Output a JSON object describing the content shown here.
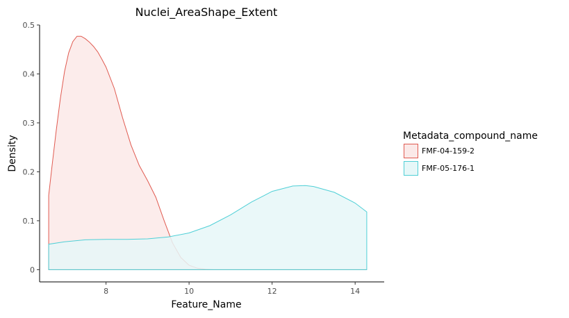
{
  "chart_data": {
    "type": "area",
    "title": "Nuclei_AreaShape_Extent",
    "xlabel": "Feature_Name",
    "ylabel": "Density",
    "xlim": [
      6.4,
      14.7
    ],
    "ylim": [
      -0.025,
      0.5
    ],
    "xticks": [
      8,
      10,
      12,
      14
    ],
    "yticks": [
      0,
      0.1,
      0.2,
      0.3,
      0.4,
      0.5
    ],
    "xtick_labels": [
      "8",
      "10",
      "12",
      "14"
    ],
    "ytick_labels": [
      "0",
      "0.1",
      "0.2",
      "0.3",
      "0.4",
      "0.5"
    ],
    "grid": false,
    "legend_placement": "right",
    "legend_title": "Metadata_compound_name",
    "series": [
      {
        "name": "FMF-04-159-2",
        "color": "#e05a50",
        "fill": "#fbe9e8",
        "x": [
          6.62,
          6.7,
          6.8,
          6.9,
          7.0,
          7.1,
          7.2,
          7.3,
          7.4,
          7.5,
          7.6,
          7.7,
          7.8,
          7.9,
          8.0,
          8.2,
          8.4,
          8.6,
          8.8,
          9.0,
          9.2,
          9.4,
          9.6,
          9.8,
          10.0,
          10.2,
          10.4,
          10.6,
          11.0,
          12.0,
          13.0,
          14.28
        ],
        "y": [
          0.152,
          0.212,
          0.284,
          0.35,
          0.405,
          0.443,
          0.466,
          0.477,
          0.477,
          0.472,
          0.465,
          0.456,
          0.445,
          0.43,
          0.414,
          0.37,
          0.31,
          0.255,
          0.213,
          0.182,
          0.148,
          0.1,
          0.055,
          0.025,
          0.009,
          0.003,
          0.001,
          0.0,
          0.0,
          0.0,
          0.0,
          0.0
        ]
      },
      {
        "name": "FMF-05-176-1",
        "color": "#4ecfd6",
        "fill": "#e6f7f8",
        "x": [
          6.62,
          7.0,
          7.5,
          8.0,
          8.5,
          9.0,
          9.5,
          10.0,
          10.5,
          11.0,
          11.5,
          12.0,
          12.5,
          12.8,
          13.0,
          13.5,
          14.0,
          14.28
        ],
        "y": [
          0.052,
          0.057,
          0.061,
          0.062,
          0.062,
          0.063,
          0.067,
          0.075,
          0.09,
          0.112,
          0.138,
          0.16,
          0.171,
          0.172,
          0.17,
          0.158,
          0.136,
          0.118
        ]
      }
    ]
  }
}
